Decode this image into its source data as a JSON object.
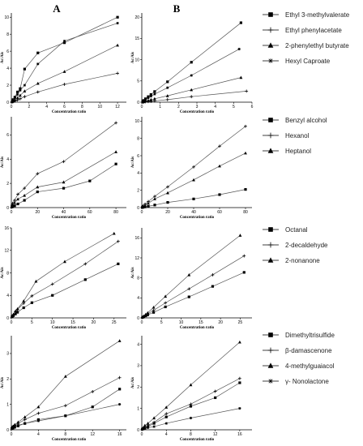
{
  "column_headers": {
    "a": "A",
    "b": "B"
  },
  "chart_data": [
    {
      "type": "line",
      "panel": "A1",
      "xlabel": "Concentration ratio",
      "ylabel": "Ac/Ais",
      "xlim": [
        0,
        13
      ],
      "ylim": [
        0,
        10.5
      ],
      "xticks": [
        0,
        2,
        4,
        6,
        8,
        10,
        12
      ],
      "yticks": [
        0,
        2,
        4,
        6,
        8,
        10
      ],
      "series": [
        {
          "name": "Ethyl 3-methylvalerate",
          "marker": "square",
          "x": [
            0.1,
            0.2,
            0.4,
            0.7,
            1.0,
            1.5,
            3.0,
            6.0,
            12.0
          ],
          "y": [
            0.1,
            0.3,
            0.6,
            1.2,
            1.6,
            3.9,
            5.8,
            7.0,
            10.0
          ]
        },
        {
          "name": "Ethyl phenylacetate",
          "marker": "plus",
          "x": [
            0.1,
            0.2,
            0.4,
            0.7,
            1.0,
            1.5,
            3.0,
            6.0,
            12.0
          ],
          "y": [
            0.03,
            0.06,
            0.12,
            0.25,
            0.4,
            0.65,
            1.2,
            2.1,
            3.4
          ]
        },
        {
          "name": "2-phenylethyl butyrate",
          "marker": "triangle",
          "x": [
            0.1,
            0.2,
            0.4,
            0.7,
            1.0,
            1.5,
            3.0,
            6.0,
            12.0
          ],
          "y": [
            0.06,
            0.12,
            0.25,
            0.5,
            0.8,
            1.3,
            2.2,
            3.6,
            6.7
          ]
        },
        {
          "name": "Hexyl Caproate",
          "marker": "star",
          "x": [
            0.1,
            0.2,
            0.4,
            0.7,
            1.0,
            1.5,
            3.0,
            6.0,
            12.0
          ],
          "y": [
            0.1,
            0.2,
            0.5,
            0.9,
            1.4,
            2.0,
            4.5,
            7.2,
            9.3
          ]
        }
      ]
    },
    {
      "type": "line",
      "panel": "B1",
      "xlabel": "Concentration ratio",
      "ylabel": "Ac/Ais",
      "xlim": [
        0,
        6
      ],
      "ylim": [
        0,
        21
      ],
      "xticks": [
        0,
        1,
        2,
        3,
        4,
        5,
        6
      ],
      "yticks": [
        0,
        5,
        10,
        15,
        20
      ],
      "series": [
        {
          "name": "Ethyl 3-methylvalerate",
          "marker": "square",
          "x": [
            0.05,
            0.1,
            0.2,
            0.35,
            0.5,
            0.7,
            1.4,
            2.7,
            5.4
          ],
          "y": [
            0.2,
            0.4,
            0.8,
            1.3,
            1.8,
            2.5,
            4.8,
            9.4,
            18.7
          ]
        },
        {
          "name": "Ethyl phenylacetate",
          "marker": "plus",
          "x": [
            0.05,
            0.1,
            0.2,
            0.35,
            0.5,
            0.7,
            1.4,
            2.7,
            5.7
          ],
          "y": [
            0.03,
            0.05,
            0.1,
            0.16,
            0.2,
            0.3,
            0.6,
            1.3,
            2.6
          ]
        },
        {
          "name": "2-phenylethyl butyrate",
          "marker": "triangle",
          "x": [
            0.05,
            0.1,
            0.2,
            0.35,
            0.5,
            0.7,
            1.4,
            2.7,
            5.4
          ],
          "y": [
            0.05,
            0.1,
            0.25,
            0.4,
            0.6,
            0.8,
            1.5,
            2.9,
            5.8
          ]
        },
        {
          "name": "Hexyl Caproate",
          "marker": "star",
          "x": [
            0.05,
            0.1,
            0.2,
            0.35,
            0.5,
            0.7,
            1.4,
            2.7,
            5.3
          ],
          "y": [
            0.15,
            0.3,
            0.6,
            1.0,
            1.4,
            1.9,
            3.4,
            6.3,
            12.5
          ]
        }
      ]
    },
    {
      "type": "line",
      "panel": "A2",
      "xlabel": "Concentration ratio",
      "ylabel": "Ac/Ais",
      "xlim": [
        0,
        88
      ],
      "ylim": [
        0,
        7.5
      ],
      "xticks": [
        0,
        20,
        40,
        60,
        80
      ],
      "yticks": [
        0,
        2,
        4,
        6
      ],
      "series": [
        {
          "name": "Benzyl alcohol",
          "marker": "square",
          "x": [
            0.5,
            1,
            2.5,
            5,
            10,
            20,
            40,
            60,
            80
          ],
          "y": [
            0.05,
            0.08,
            0.15,
            0.3,
            0.6,
            1.3,
            1.6,
            2.2,
            3.6
          ]
        },
        {
          "name": "Hexanol",
          "marker": "plus",
          "x": [
            0.5,
            1,
            2.5,
            5,
            10,
            20,
            40,
            80
          ],
          "y": [
            0.2,
            0.35,
            0.6,
            1.1,
            1.6,
            2.8,
            3.8,
            7.0
          ]
        },
        {
          "name": "Heptanol",
          "marker": "triangle",
          "x": [
            0.5,
            1,
            2.5,
            5,
            10,
            20,
            40,
            80
          ],
          "y": [
            0.1,
            0.2,
            0.4,
            0.7,
            1.0,
            1.7,
            2.1,
            4.6
          ]
        }
      ]
    },
    {
      "type": "line",
      "panel": "B2",
      "xlabel": "Concentration ratio",
      "ylabel": "Ac/Ais",
      "xlim": [
        0,
        85
      ],
      "ylim": [
        0,
        10.5
      ],
      "xticks": [
        0,
        20,
        40,
        60,
        80
      ],
      "yticks": [
        0,
        2,
        4,
        6,
        8,
        10
      ],
      "series": [
        {
          "name": "Benzyl alcohol",
          "marker": "square",
          "x": [
            0.5,
            1,
            2.5,
            5,
            10,
            20,
            40,
            60,
            80
          ],
          "y": [
            0.02,
            0.04,
            0.08,
            0.15,
            0.3,
            0.6,
            1.0,
            1.5,
            2.1
          ]
        },
        {
          "name": "Hexanol",
          "marker": "plus",
          "x": [
            0.5,
            1,
            2.5,
            5,
            10,
            20,
            40,
            60,
            80
          ],
          "y": [
            0.1,
            0.2,
            0.4,
            0.7,
            1.3,
            2.4,
            4.7,
            7.1,
            9.4
          ]
        },
        {
          "name": "Heptanol",
          "marker": "triangle",
          "x": [
            0.5,
            1,
            2.5,
            5,
            10,
            20,
            40,
            60,
            80
          ],
          "y": [
            0.06,
            0.12,
            0.25,
            0.5,
            1.0,
            1.7,
            3.2,
            4.8,
            6.3
          ]
        }
      ]
    },
    {
      "type": "line",
      "panel": "A3",
      "xlabel": "Concentration ratio",
      "ylabel": "Ac/Ais",
      "xlim": [
        0,
        28
      ],
      "ylim": [
        0,
        16
      ],
      "xticks": [
        0,
        5,
        10,
        15,
        20,
        25
      ],
      "yticks": [
        0,
        4,
        8,
        12,
        16
      ],
      "series": [
        {
          "name": "Octanal",
          "marker": "square",
          "x": [
            0.2,
            0.5,
            1,
            1.5,
            3,
            5,
            10,
            18,
            26
          ],
          "y": [
            0.2,
            0.4,
            0.7,
            1.0,
            1.8,
            2.7,
            4.0,
            6.8,
            9.6
          ]
        },
        {
          "name": "2-decaldehyde",
          "marker": "plus",
          "x": [
            0.2,
            0.5,
            1,
            1.5,
            3,
            5,
            10,
            18,
            26
          ],
          "y": [
            0.3,
            0.6,
            1.1,
            1.5,
            2.6,
            3.9,
            6.0,
            9.6,
            13.6
          ]
        },
        {
          "name": "2-nonanone",
          "marker": "triangle",
          "x": [
            0.2,
            0.5,
            1,
            1.5,
            3,
            6,
            13,
            25
          ],
          "y": [
            0.3,
            0.6,
            1.2,
            1.6,
            3.0,
            6.5,
            10.0,
            15.0
          ]
        }
      ]
    },
    {
      "type": "line",
      "panel": "B3",
      "xlabel": "Concentration ratio",
      "ylabel": "Ac/Ais",
      "xlim": [
        0,
        28
      ],
      "ylim": [
        0,
        18
      ],
      "xticks": [
        0,
        5,
        10,
        15,
        20,
        25
      ],
      "yticks": [
        0,
        4,
        8,
        12,
        16
      ],
      "series": [
        {
          "name": "Octanal",
          "marker": "square",
          "x": [
            0.2,
            0.5,
            1,
            1.5,
            3,
            6,
            12,
            18,
            26
          ],
          "y": [
            0.1,
            0.2,
            0.4,
            0.6,
            1.1,
            2.2,
            4.2,
            6.3,
            9.1
          ]
        },
        {
          "name": "2-decaldehyde",
          "marker": "plus",
          "x": [
            0.2,
            0.5,
            1,
            1.5,
            3,
            6,
            12,
            18,
            26
          ],
          "y": [
            0.1,
            0.3,
            0.5,
            0.8,
            1.5,
            3.0,
            5.8,
            8.6,
            12.4
          ]
        },
        {
          "name": "2-nonanone",
          "marker": "triangle",
          "x": [
            0.2,
            0.5,
            1,
            1.5,
            3,
            6,
            12,
            25
          ],
          "y": [
            0.15,
            0.35,
            0.7,
            1.0,
            2.1,
            4.3,
            8.6,
            16.5
          ]
        }
      ]
    },
    {
      "type": "line",
      "panel": "A4",
      "xlabel": "Concentration ratio",
      "ylabel": "Ac/Ais",
      "xlim": [
        0,
        17
      ],
      "ylim": [
        0,
        3.7
      ],
      "xticks": [
        0,
        4,
        8,
        12,
        16
      ],
      "yticks": [
        0,
        1,
        2,
        3
      ],
      "series": [
        {
          "name": "Dimethyltrisulfide",
          "marker": "square",
          "x": [
            0.1,
            0.25,
            0.5,
            1,
            2,
            4,
            8,
            12,
            16
          ],
          "y": [
            0.05,
            0.07,
            0.1,
            0.15,
            0.25,
            0.4,
            0.55,
            0.9,
            1.6
          ]
        },
        {
          "name": "β-damascenone",
          "marker": "plus",
          "x": [
            0.1,
            0.25,
            0.5,
            1,
            2,
            4,
            8,
            12,
            16
          ],
          "y": [
            0.08,
            0.12,
            0.18,
            0.25,
            0.4,
            0.65,
            0.95,
            1.5,
            2.05
          ]
        },
        {
          "name": "4-methylguaiacol",
          "marker": "triangle",
          "x": [
            0.1,
            0.25,
            0.5,
            1,
            2,
            4,
            8,
            16
          ],
          "y": [
            0.1,
            0.14,
            0.2,
            0.3,
            0.5,
            0.9,
            2.1,
            3.5
          ]
        },
        {
          "name": "γ- Nonolactone",
          "marker": "star",
          "x": [
            0.1,
            0.25,
            0.5,
            1,
            2,
            4,
            8,
            16
          ],
          "y": [
            0.05,
            0.08,
            0.12,
            0.18,
            0.25,
            0.35,
            0.55,
            1.0
          ]
        }
      ]
    },
    {
      "type": "line",
      "panel": "B4",
      "xlabel": "Concentration ratio",
      "ylabel": "Ac/Ais",
      "xlim": [
        0,
        18
      ],
      "ylim": [
        0,
        4.4
      ],
      "xticks": [
        0,
        4,
        8,
        12,
        16
      ],
      "yticks": [
        0,
        1,
        2,
        3,
        4
      ],
      "series": [
        {
          "name": "Dimethyltrisulfide",
          "marker": "square",
          "x": [
            0.1,
            0.25,
            0.5,
            1,
            2,
            4,
            8,
            12,
            16
          ],
          "y": [
            0.03,
            0.05,
            0.08,
            0.15,
            0.3,
            0.6,
            1.1,
            1.5,
            2.2
          ]
        },
        {
          "name": "β-damascenone",
          "marker": "plus",
          "x": [
            0.1,
            0.25,
            0.5,
            1,
            2,
            4,
            8,
            12,
            16
          ],
          "y": [
            0.04,
            0.06,
            0.1,
            0.2,
            0.35,
            0.75,
            1.2,
            1.8,
            2.4
          ]
        },
        {
          "name": "4-methylguaiacol",
          "marker": "triangle",
          "x": [
            0.1,
            0.25,
            0.5,
            1,
            2,
            4,
            8,
            16
          ],
          "y": [
            0.05,
            0.1,
            0.2,
            0.3,
            0.55,
            1.05,
            2.1,
            4.1
          ]
        },
        {
          "name": "γ- Nonolactone",
          "marker": "star",
          "x": [
            0.1,
            0.25,
            0.5,
            1,
            2,
            4,
            8,
            16
          ],
          "y": [
            0.02,
            0.04,
            0.06,
            0.1,
            0.15,
            0.3,
            0.55,
            1.0
          ]
        }
      ]
    }
  ],
  "legends": [
    {
      "entries": [
        {
          "label": "Ethyl 3-methylvalerate",
          "marker": "square"
        },
        {
          "label": "Ethyl phenylacetate",
          "marker": "plus"
        },
        {
          "label": "2-phenylethyl butyrate",
          "marker": "triangle"
        },
        {
          "label": "Hexyl Caproate",
          "marker": "star"
        }
      ]
    },
    {
      "entries": [
        {
          "label": "Benzyl alcohol",
          "marker": "square"
        },
        {
          "label": "Hexanol",
          "marker": "plus"
        },
        {
          "label": "Heptanol",
          "marker": "triangle"
        }
      ]
    },
    {
      "entries": [
        {
          "label": "Octanal",
          "marker": "square"
        },
        {
          "label": "2-decaldehyde",
          "marker": "plus"
        },
        {
          "label": "2-nonanone",
          "marker": "triangle"
        }
      ]
    },
    {
      "entries": [
        {
          "label": "Dimethyltrisulfide",
          "marker": "square"
        },
        {
          "label": "β-damascenone",
          "marker": "plus"
        },
        {
          "label": "4-methylguaiacol",
          "marker": "triangle"
        },
        {
          "label": "γ- Nonolactone",
          "marker": "star"
        }
      ]
    }
  ]
}
